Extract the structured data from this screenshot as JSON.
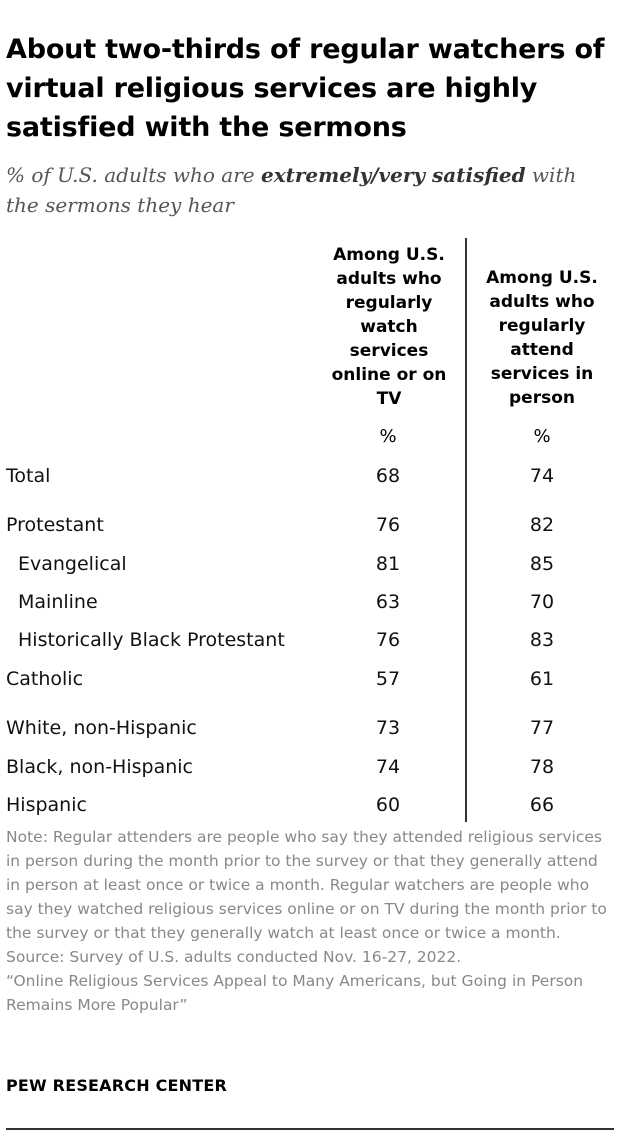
{
  "title": "About two-thirds of regular watchers of virtual religious services are highly satisfied with the sermons",
  "subtitle": {
    "prefix": "% of U.S. adults who are ",
    "emphasis": "extremely/very satisfied",
    "suffix": " with the sermons they hear"
  },
  "chart_data": {
    "type": "table",
    "columns": [
      {
        "name": "Among U.S. adults who regularly watch services online or on TV",
        "unit": "%"
      },
      {
        "name": "Among U.S. adults who regularly attend services in person",
        "unit": "%"
      }
    ],
    "rows": [
      {
        "label": "Total",
        "values": [
          "68",
          "74"
        ]
      },
      {
        "label": "Protestant",
        "values": [
          "76",
          "82"
        ]
      },
      {
        "label": "Evangelical",
        "values": [
          "81",
          "85"
        ]
      },
      {
        "label": "Mainline",
        "values": [
          "63",
          "70"
        ]
      },
      {
        "label": "Historically Black Protestant",
        "values": [
          "76",
          "83"
        ]
      },
      {
        "label": "Catholic",
        "values": [
          "57",
          "61"
        ]
      },
      {
        "label": "White, non-Hispanic",
        "values": [
          "73",
          "77"
        ]
      },
      {
        "label": "Black, non-Hispanic",
        "values": [
          "74",
          "78"
        ]
      },
      {
        "label": "Hispanic",
        "values": [
          "60",
          "66"
        ]
      }
    ]
  },
  "note": "Note: Regular attenders are people who say they attended religious services in person during the month prior to the survey or that they generally attend in person at least once or twice a month. Regular watchers are people who say they watched religious services online or on TV during the month prior to the survey or that they generally watch at least once or twice a month.",
  "source": "Source: Survey of U.S. adults conducted Nov. 16-27, 2022.",
  "report": "“Online Religious Services Appeal to Many Americans, but Going in Person Remains More Popular”",
  "brand": "PEW RESEARCH CENTER"
}
